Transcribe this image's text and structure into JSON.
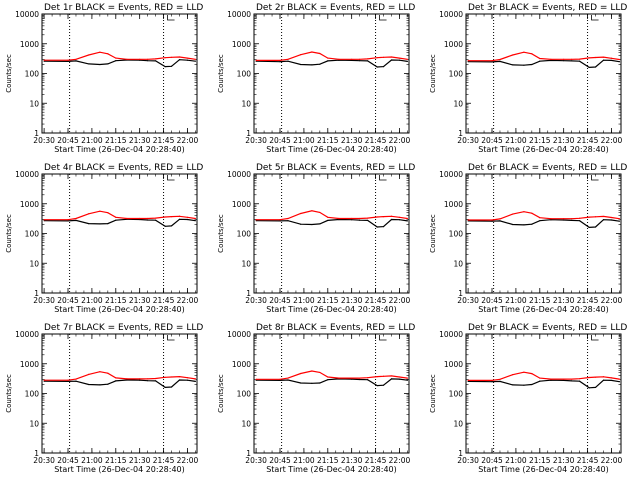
{
  "colors": {
    "events": "#000000",
    "lld": "#ff0000",
    "axes": "#000000",
    "markers": "#000000"
  },
  "shared": {
    "xlabel": "Start Time (26-Dec-04 20:28:40)",
    "ylabel": "Counts/sec",
    "x_tick_labels": [
      "20:30",
      "20:45",
      "21:00",
      "21:15",
      "21:30",
      "21:45",
      "22:00"
    ],
    "y_tick_labels": [
      "1",
      "10",
      "100",
      "1000",
      "10000"
    ]
  },
  "chart_data": [
    {
      "type": "line",
      "title": "Det 1r BLACK = Events, RED = LLD",
      "x": [
        "20:30",
        "20:45",
        "20:50",
        "20:58",
        "21:05",
        "21:10",
        "21:15",
        "21:22",
        "21:30",
        "21:35",
        "21:40",
        "21:46",
        "21:50",
        "21:55",
        "22:00",
        "22:05"
      ],
      "xlim": [
        "20:28:40",
        "22:06"
      ],
      "ylim": [
        1,
        10000
      ],
      "yscale": "log",
      "series": [
        {
          "name": "Events",
          "color": "#000000",
          "values": [
            260,
            255,
            265,
            210,
            200,
            210,
            270,
            285,
            280,
            270,
            265,
            170,
            175,
            290,
            280,
            260
          ]
        },
        {
          "name": "LLD",
          "color": "#ff0000",
          "values": [
            280,
            280,
            300,
            420,
            520,
            460,
            330,
            300,
            300,
            300,
            310,
            340,
            350,
            360,
            330,
            300
          ]
        }
      ],
      "dotted_markers": [
        "20:46",
        "21:45"
      ]
    },
    {
      "type": "line",
      "title": "Det 2r BLACK = Events, RED = LLD",
      "x": [
        "20:30",
        "20:45",
        "20:50",
        "20:58",
        "21:05",
        "21:10",
        "21:15",
        "21:22",
        "21:30",
        "21:35",
        "21:40",
        "21:46",
        "21:50",
        "21:55",
        "22:00",
        "22:05"
      ],
      "xlim": [
        "20:28:40",
        "22:06"
      ],
      "ylim": [
        1,
        10000
      ],
      "yscale": "log",
      "series": [
        {
          "name": "Events",
          "color": "#000000",
          "values": [
            260,
            250,
            260,
            200,
            195,
            205,
            265,
            280,
            275,
            270,
            265,
            165,
            170,
            285,
            280,
            255
          ]
        },
        {
          "name": "LLD",
          "color": "#ff0000",
          "values": [
            275,
            275,
            300,
            430,
            530,
            470,
            330,
            300,
            300,
            300,
            310,
            340,
            350,
            360,
            330,
            300
          ]
        }
      ],
      "dotted_markers": [
        "20:46",
        "21:45"
      ]
    },
    {
      "type": "line",
      "title": "Det 3r BLACK = Events, RED = LLD",
      "x": [
        "20:30",
        "20:45",
        "20:50",
        "20:58",
        "21:05",
        "21:10",
        "21:15",
        "21:22",
        "21:30",
        "21:35",
        "21:40",
        "21:46",
        "21:50",
        "21:55",
        "22:00",
        "22:05"
      ],
      "xlim": [
        "20:28:40",
        "22:06"
      ],
      "ylim": [
        1,
        10000
      ],
      "yscale": "log",
      "series": [
        {
          "name": "Events",
          "color": "#000000",
          "values": [
            250,
            245,
            255,
            195,
            190,
            200,
            260,
            275,
            270,
            265,
            260,
            160,
            165,
            280,
            275,
            250
          ]
        },
        {
          "name": "LLD",
          "color": "#ff0000",
          "values": [
            270,
            270,
            295,
            420,
            520,
            460,
            320,
            300,
            300,
            300,
            305,
            335,
            345,
            355,
            325,
            295
          ]
        }
      ],
      "dotted_markers": [
        "20:46",
        "21:45"
      ]
    },
    {
      "type": "line",
      "title": "Det 4r BLACK = Events, RED = LLD",
      "x": [
        "20:30",
        "20:45",
        "20:50",
        "20:58",
        "21:05",
        "21:10",
        "21:15",
        "21:22",
        "21:30",
        "21:35",
        "21:40",
        "21:46",
        "21:50",
        "21:55",
        "22:00",
        "22:05"
      ],
      "xlim": [
        "20:28:40",
        "22:06"
      ],
      "ylim": [
        1,
        10000
      ],
      "yscale": "log",
      "series": [
        {
          "name": "Events",
          "color": "#000000",
          "values": [
            270,
            265,
            275,
            215,
            210,
            215,
            280,
            300,
            295,
            285,
            280,
            175,
            180,
            300,
            295,
            270
          ]
        },
        {
          "name": "LLD",
          "color": "#ff0000",
          "values": [
            290,
            290,
            320,
            460,
            560,
            500,
            350,
            320,
            320,
            320,
            330,
            360,
            370,
            380,
            350,
            320
          ]
        }
      ],
      "dotted_markers": [
        "20:46",
        "21:45"
      ]
    },
    {
      "type": "line",
      "title": "Det 5r BLACK = Events, RED = LLD",
      "x": [
        "20:30",
        "20:45",
        "20:50",
        "20:58",
        "21:05",
        "21:10",
        "21:15",
        "21:22",
        "21:30",
        "21:35",
        "21:40",
        "21:46",
        "21:50",
        "21:55",
        "22:00",
        "22:05"
      ],
      "xlim": [
        "20:28:40",
        "22:06"
      ],
      "ylim": [
        1,
        10000
      ],
      "yscale": "log",
      "series": [
        {
          "name": "Events",
          "color": "#000000",
          "values": [
            270,
            265,
            270,
            205,
            200,
            210,
            275,
            295,
            290,
            280,
            275,
            165,
            170,
            295,
            290,
            265
          ]
        },
        {
          "name": "LLD",
          "color": "#ff0000",
          "values": [
            290,
            290,
            320,
            470,
            580,
            510,
            350,
            320,
            320,
            320,
            330,
            360,
            370,
            380,
            350,
            320
          ]
        }
      ],
      "dotted_markers": [
        "20:46",
        "21:45"
      ]
    },
    {
      "type": "line",
      "title": "Det 6r BLACK = Events, RED = LLD",
      "x": [
        "20:30",
        "20:45",
        "20:50",
        "20:58",
        "21:05",
        "21:10",
        "21:15",
        "21:22",
        "21:30",
        "21:35",
        "21:40",
        "21:46",
        "21:50",
        "21:55",
        "22:00",
        "22:05"
      ],
      "xlim": [
        "20:28:40",
        "22:06"
      ],
      "ylim": [
        1,
        10000
      ],
      "yscale": "log",
      "series": [
        {
          "name": "Events",
          "color": "#000000",
          "values": [
            265,
            260,
            265,
            200,
            195,
            205,
            270,
            290,
            285,
            275,
            270,
            160,
            165,
            290,
            285,
            260
          ]
        },
        {
          "name": "LLD",
          "color": "#ff0000",
          "values": [
            285,
            285,
            310,
            450,
            540,
            480,
            340,
            315,
            315,
            315,
            325,
            355,
            365,
            375,
            345,
            315
          ]
        }
      ],
      "dotted_markers": [
        "20:46",
        "21:45"
      ]
    },
    {
      "type": "line",
      "title": "Det 7r BLACK = Events, RED = LLD",
      "x": [
        "20:30",
        "20:45",
        "20:50",
        "20:58",
        "21:05",
        "21:10",
        "21:15",
        "21:22",
        "21:30",
        "21:35",
        "21:40",
        "21:46",
        "21:50",
        "21:55",
        "22:00",
        "22:05"
      ],
      "xlim": [
        "20:28:40",
        "22:06"
      ],
      "ylim": [
        1,
        10000
      ],
      "yscale": "log",
      "series": [
        {
          "name": "Events",
          "color": "#000000",
          "values": [
            260,
            255,
            260,
            200,
            195,
            205,
            265,
            285,
            280,
            270,
            265,
            160,
            165,
            285,
            280,
            255
          ]
        },
        {
          "name": "LLD",
          "color": "#ff0000",
          "values": [
            280,
            280,
            305,
            440,
            540,
            480,
            335,
            310,
            310,
            310,
            320,
            350,
            360,
            370,
            340,
            310
          ]
        }
      ],
      "dotted_markers": [
        "20:46",
        "21:45"
      ]
    },
    {
      "type": "line",
      "title": "Det 8r BLACK = Events, RED = LLD",
      "x": [
        "20:30",
        "20:45",
        "20:50",
        "20:58",
        "21:05",
        "21:10",
        "21:15",
        "21:22",
        "21:30",
        "21:35",
        "21:40",
        "21:46",
        "21:50",
        "21:55",
        "22:00",
        "22:05"
      ],
      "xlim": [
        "20:28:40",
        "22:06"
      ],
      "ylim": [
        1,
        10000
      ],
      "yscale": "log",
      "series": [
        {
          "name": "Events",
          "color": "#000000",
          "values": [
            280,
            275,
            285,
            225,
            220,
            225,
            290,
            310,
            305,
            295,
            290,
            185,
            190,
            310,
            305,
            280
          ]
        },
        {
          "name": "LLD",
          "color": "#ff0000",
          "values": [
            300,
            300,
            330,
            470,
            570,
            510,
            360,
            330,
            330,
            330,
            340,
            370,
            380,
            390,
            360,
            330
          ]
        }
      ],
      "dotted_markers": [
        "20:46",
        "21:45"
      ]
    },
    {
      "type": "line",
      "title": "Det 9r BLACK = Events, RED = LLD",
      "x": [
        "20:30",
        "20:45",
        "20:50",
        "20:58",
        "21:05",
        "21:10",
        "21:15",
        "21:22",
        "21:30",
        "21:35",
        "21:40",
        "21:46",
        "21:50",
        "21:55",
        "22:00",
        "22:05"
      ],
      "xlim": [
        "20:28:40",
        "22:06"
      ],
      "ylim": [
        1,
        10000
      ],
      "yscale": "log",
      "series": [
        {
          "name": "Events",
          "color": "#000000",
          "values": [
            255,
            250,
            255,
            195,
            190,
            200,
            260,
            280,
            275,
            265,
            260,
            155,
            160,
            280,
            275,
            250
          ]
        },
        {
          "name": "LLD",
          "color": "#ff0000",
          "values": [
            275,
            275,
            300,
            430,
            520,
            465,
            330,
            305,
            305,
            305,
            315,
            345,
            355,
            365,
            335,
            305
          ]
        }
      ],
      "dotted_markers": [
        "20:46",
        "21:45"
      ]
    }
  ]
}
